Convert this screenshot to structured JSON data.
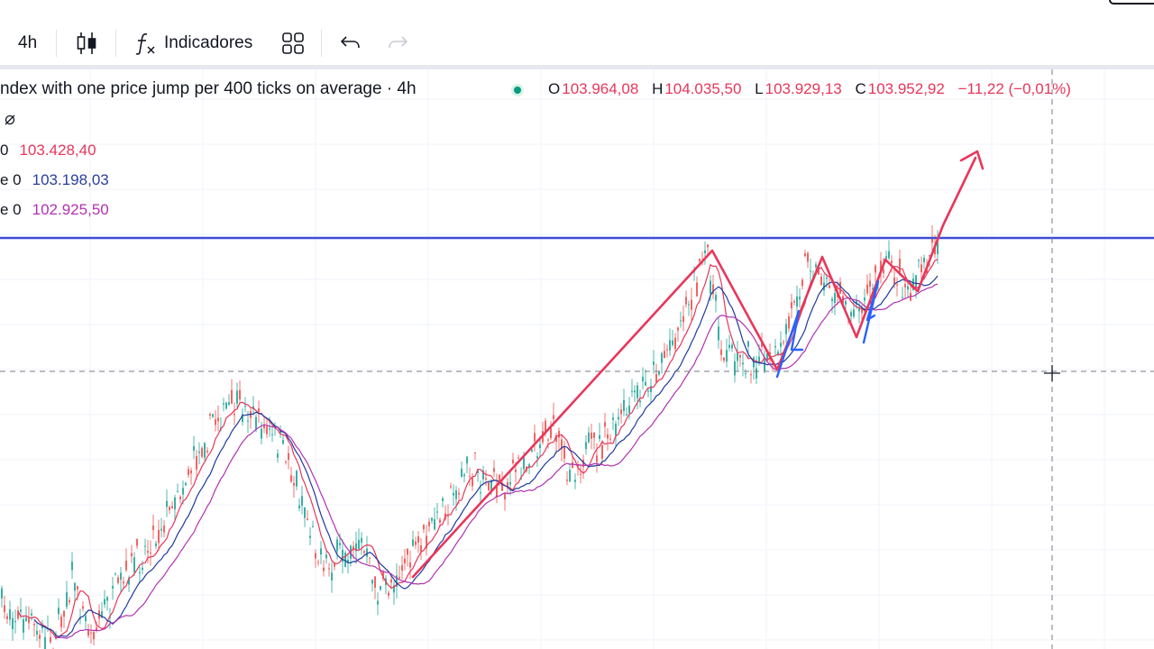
{
  "toolbar": {
    "timeframe": "4h",
    "indicators_label": "Indicadores",
    "icons": [
      "candles-icon",
      "function-icon",
      "layouts-grid-icon",
      "undo-icon",
      "redo-icon"
    ]
  },
  "legend": {
    "title": "ndex with one price jump per 400 ticks on average · 4h",
    "ohlc": {
      "o_label": "O",
      "o": "103.964,08",
      "h_label": "H",
      "h": "104.035,50",
      "l_label": "L",
      "l": "103.929,13",
      "c_label": "C",
      "c": "103.952,92",
      "change": "−11,22 (−0,01%)"
    },
    "indicators": [
      {
        "prefix": "0",
        "value": "103.428,40",
        "color": "#e8365a"
      },
      {
        "prefix": "e 0",
        "value": "103.198,03",
        "color": "#2a3f9e"
      },
      {
        "prefix": "e 0",
        "value": "102.925,50",
        "color": "#b232b2"
      }
    ]
  },
  "colors": {
    "up_candle": "#26a69a",
    "down_candle": "#ef5350",
    "ma_fast": "#e8365a",
    "ma_mid": "#1f3a9e",
    "ma_slow": "#b232b2",
    "resistance_line": "#3b4fd6",
    "drawing_red": "#e8365a",
    "drawing_blue": "#2962ff"
  }
}
